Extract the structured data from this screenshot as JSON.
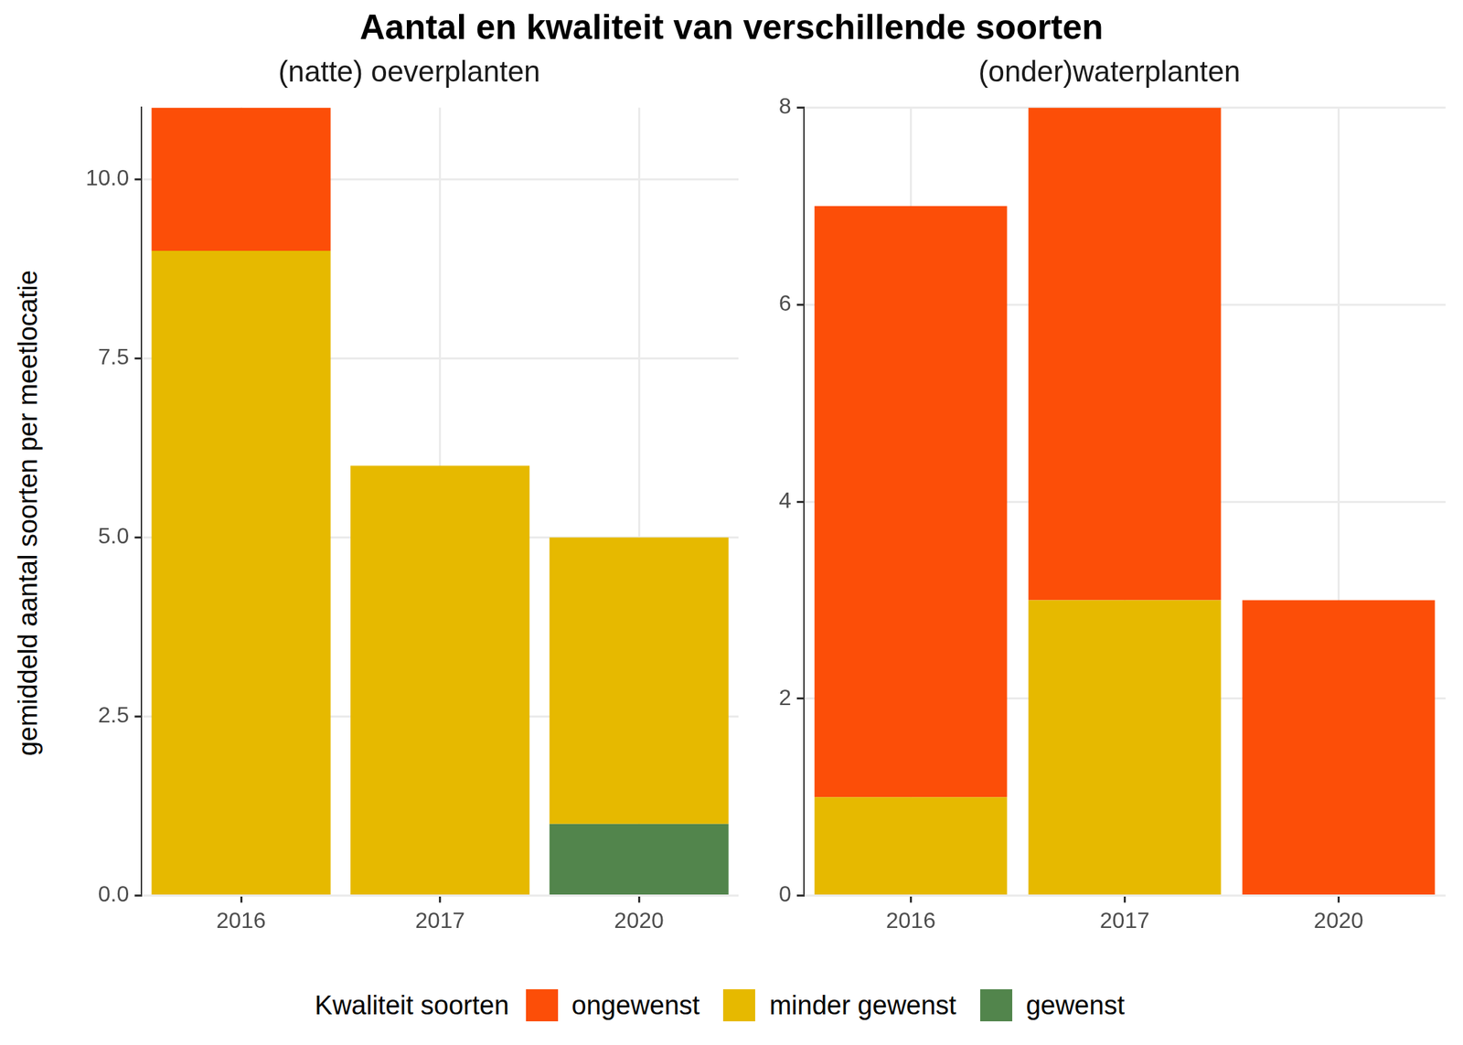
{
  "title": "Aantal en kwaliteit van verschillende soorten",
  "y_label": "gemiddeld aantal soorten per meetlocatie",
  "legend_title": "Kwaliteit soorten",
  "chart_data": [
    {
      "type": "bar",
      "title": "(natte) oeverplanten",
      "stacked": true,
      "grid": true,
      "legend": "bottom",
      "categories": [
        "2016",
        "2017",
        "2020"
      ],
      "series": [
        {
          "name": "ongewenst",
          "color": "#fc4e08",
          "values": [
            2,
            0,
            0
          ]
        },
        {
          "name": "minder gewenst",
          "color": "#e6b900",
          "values": [
            9,
            6,
            4
          ]
        },
        {
          "name": "gewenst",
          "color": "#52854c",
          "values": [
            0,
            0,
            1
          ]
        }
      ],
      "ylim": [
        0,
        11
      ],
      "yticks": [
        {
          "value": 0,
          "label": "0.0"
        },
        2.5,
        {
          "value": 5,
          "label": "5.0"
        },
        7.5,
        {
          "value": 10,
          "label": "10.0"
        }
      ]
    },
    {
      "type": "bar",
      "title": "(onder)waterplanten",
      "stacked": true,
      "grid": true,
      "legend": "bottom",
      "categories": [
        "2016",
        "2017",
        "2020"
      ],
      "series": [
        {
          "name": "ongewenst",
          "color": "#fc4e08",
          "values": [
            6,
            5,
            3
          ]
        },
        {
          "name": "minder gewenst",
          "color": "#e6b900",
          "values": [
            1,
            3,
            0
          ]
        },
        {
          "name": "gewenst",
          "color": "#52854c",
          "values": [
            0,
            0,
            0
          ]
        }
      ],
      "ylim": [
        0,
        8
      ],
      "yticks": [
        0,
        2,
        4,
        6,
        8
      ]
    }
  ]
}
